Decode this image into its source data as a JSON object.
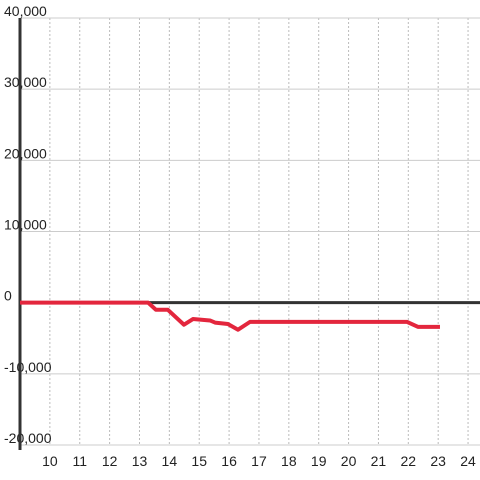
{
  "chart_data": {
    "type": "line",
    "x": [
      9.0,
      13.29,
      13.55,
      13.95,
      14.49,
      14.79,
      15.36,
      15.53,
      15.96,
      16.3,
      16.7,
      17.03,
      21.96,
      22.32,
      23.06
    ],
    "series": [
      {
        "color": "#e3263d",
        "values": [
          0,
          0,
          -1000,
          -1000,
          -3100,
          -2300,
          -2500,
          -2800,
          -3000,
          -3800,
          -2700,
          -2700,
          -2700,
          -3400,
          -3400
        ]
      }
    ],
    "xlim": [
      9,
      24.4
    ],
    "xticks": [
      10,
      11,
      12,
      13,
      14,
      15,
      16,
      17,
      18,
      19,
      20,
      21,
      22,
      23,
      24
    ],
    "ylim": [
      -20000,
      40000
    ],
    "yticks": [
      {
        "value": -20000,
        "label": "-20,000"
      },
      {
        "value": -10000,
        "label": "-10,000"
      },
      0,
      {
        "value": 10000,
        "label": "10,000"
      },
      {
        "value": 20000,
        "label": "20,000"
      },
      {
        "value": 30000,
        "label": "30,000"
      },
      {
        "value": 40000,
        "label": "40,000"
      }
    ],
    "grid": true
  }
}
